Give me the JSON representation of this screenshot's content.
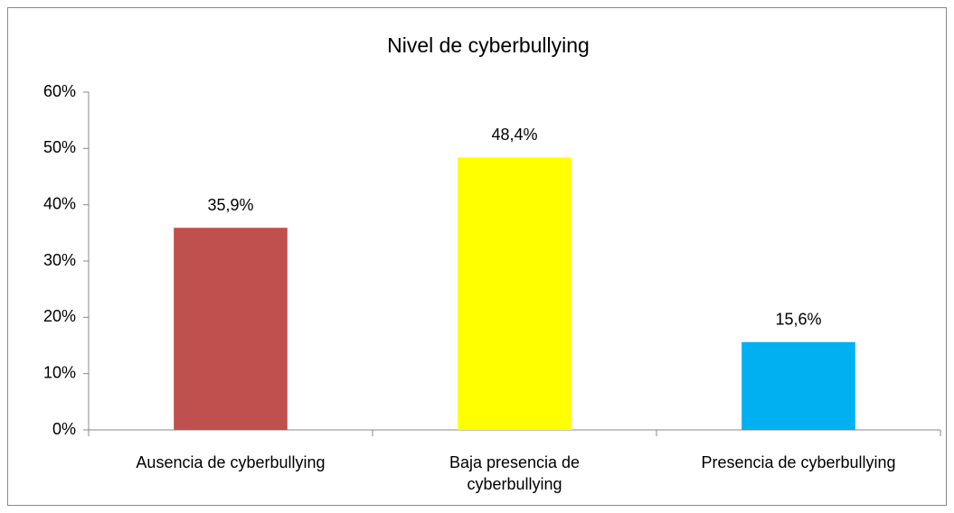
{
  "chart_data": {
    "type": "bar",
    "title": "Nivel de cyberbullying",
    "categories": [
      "Ausencia de cyberbullying",
      "Baja presencia de cyberbullying",
      "Presencia de cyberbullying"
    ],
    "values": [
      35.9,
      48.4,
      15.6
    ],
    "value_labels": [
      "35,9%",
      "48,4%",
      "15,6%"
    ],
    "colors": [
      "#c0504d",
      "#ffff00",
      "#00b0f0"
    ],
    "ylim": [
      0,
      60
    ],
    "yticks": [
      {
        "value": 0,
        "label": "0%"
      },
      {
        "value": 10,
        "label": "10%"
      },
      {
        "value": 20,
        "label": "20%"
      },
      {
        "value": 30,
        "label": "30%"
      },
      {
        "value": 40,
        "label": "40%"
      },
      {
        "value": 50,
        "label": "50%"
      },
      {
        "value": 60,
        "label": "60%"
      }
    ],
    "grid": false
  }
}
